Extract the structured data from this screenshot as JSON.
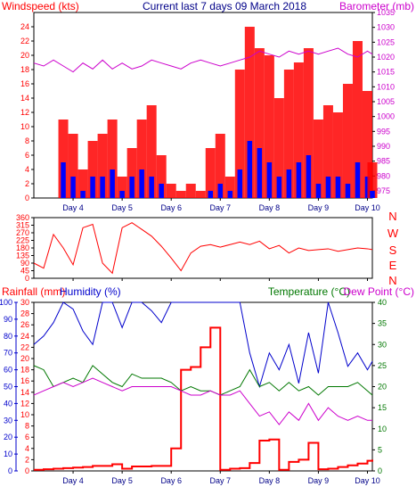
{
  "title": "Current last 7 days 09 March 2018",
  "colors": {
    "wind": "#ff0000",
    "gust": "#ff0000",
    "baro": "#cc00cc",
    "dir": "#ff0000",
    "rain": "#ff0000",
    "hum": "#0000cc",
    "temp": "#007700",
    "dew": "#cc00cc",
    "frame": "#000000",
    "grid": "#cccccc"
  },
  "labels": {
    "wind_axis": "Windspeed (kts)",
    "baro_axis": "Barometer (mb)",
    "rain_axis": "Rainfall (mm)",
    "hum_axis": "Humidity (%)",
    "temp_axis": "Temperature (°C)",
    "dew_axis": "Dew Point (°C)",
    "compass": [
      "N",
      "W",
      "S",
      "E",
      "N"
    ]
  },
  "chart_data": [
    {
      "type": "line",
      "name": "wind-panel",
      "x_ticks": [
        "Day 4",
        "Day 5",
        "Day 6",
        "Day 7",
        "Day 8",
        "Day 9",
        "Day 10"
      ],
      "y_left_ticks": [
        0,
        2,
        4,
        6,
        8,
        10,
        12,
        14,
        16,
        18,
        20,
        22,
        24
      ],
      "y_right_ticks": [
        975,
        980,
        985,
        990,
        995,
        1000,
        1005,
        1010,
        1015,
        1020,
        1025,
        1030,
        1035
      ],
      "ylim_left": [
        0,
        26
      ],
      "ylim_right": [
        975,
        1035
      ],
      "days": [
        3.2,
        3.4,
        3.6,
        3.8,
        4.0,
        4.2,
        4.4,
        4.6,
        4.8,
        5.0,
        5.2,
        5.4,
        5.6,
        5.8,
        6.0,
        6.2,
        6.4,
        6.6,
        6.8,
        7.0,
        7.2,
        7.4,
        7.6,
        7.8,
        8.0,
        8.2,
        8.4,
        8.6,
        8.8,
        9.0,
        9.2,
        9.4,
        9.6,
        9.8,
        10.0,
        10.1
      ],
      "gust": [
        0,
        0,
        0,
        11,
        9,
        4,
        8,
        9,
        11,
        3,
        7,
        11,
        13,
        6,
        2,
        1,
        2,
        1,
        7,
        9,
        3,
        18,
        24,
        21,
        20,
        14,
        18,
        19,
        21,
        11,
        13,
        12,
        16,
        22,
        15,
        5
      ],
      "wind": [
        0,
        0,
        0,
        5,
        3,
        1,
        3,
        3,
        4,
        1,
        3,
        4,
        3,
        2,
        0,
        0,
        0,
        0,
        1,
        2,
        1,
        4,
        8,
        7,
        5,
        3,
        4,
        5,
        6,
        2,
        3,
        3,
        2,
        5,
        3,
        1
      ],
      "baro": [
        1018,
        1017,
        1019,
        1017,
        1015,
        1018,
        1016,
        1019,
        1016,
        1018,
        1016,
        1017,
        1019,
        1018,
        1017,
        1016,
        1018,
        1019,
        1018,
        1017,
        1018,
        1019,
        1020,
        1022,
        1021,
        1020,
        1022,
        1021,
        1022,
        1021,
        1022,
        1023,
        1021,
        1020,
        1022,
        1021
      ]
    },
    {
      "type": "line",
      "name": "direction-panel",
      "x_ticks": [
        "Day 4",
        "Day 5",
        "Day 6",
        "Day 7",
        "Day 8",
        "Day 9",
        "Day 10"
      ],
      "y_ticks": [
        0,
        45,
        90,
        135,
        180,
        225,
        270,
        315,
        360
      ],
      "ylim": [
        0,
        360
      ],
      "days": [
        3.2,
        3.4,
        3.6,
        3.8,
        4.0,
        4.2,
        4.4,
        4.6,
        4.8,
        5.0,
        5.2,
        5.4,
        5.6,
        5.8,
        6.0,
        6.2,
        6.4,
        6.6,
        6.8,
        7.0,
        7.2,
        7.4,
        7.6,
        7.8,
        8.0,
        8.2,
        8.4,
        8.6,
        8.8,
        9.0,
        9.2,
        9.4,
        9.6,
        9.8,
        10.0,
        10.1
      ],
      "direction": [
        90,
        60,
        260,
        180,
        80,
        300,
        320,
        90,
        30,
        300,
        330,
        290,
        250,
        190,
        120,
        45,
        150,
        190,
        200,
        185,
        200,
        215,
        200,
        220,
        175,
        195,
        150,
        180,
        165,
        170,
        175,
        160,
        170,
        180,
        175,
        170
      ]
    },
    {
      "type": "line",
      "name": "rain-panel",
      "x_ticks": [
        "Day 4",
        "Day 5",
        "Day 6",
        "Day 7",
        "Day 8",
        "Day 9",
        "Day 10"
      ],
      "y_rain_ticks": [
        0,
        2,
        4,
        6,
        8,
        10,
        12,
        14,
        16,
        18,
        20,
        22,
        24,
        26,
        28,
        30
      ],
      "y_hum_ticks": [
        0,
        10,
        20,
        30,
        40,
        50,
        60,
        70,
        80,
        90,
        100
      ],
      "y_temp_ticks": [
        0,
        5,
        10,
        15,
        20,
        25,
        30,
        35,
        40
      ],
      "ylim_rain": [
        0,
        30
      ],
      "ylim_hum": [
        0,
        100
      ],
      "ylim_temp": [
        0,
        40
      ],
      "days": [
        3.2,
        3.4,
        3.6,
        3.8,
        4.0,
        4.2,
        4.4,
        4.6,
        4.8,
        5.0,
        5.2,
        5.4,
        5.6,
        5.8,
        6.0,
        6.2,
        6.4,
        6.6,
        6.8,
        7.0,
        7.2,
        7.4,
        7.6,
        7.8,
        8.0,
        8.2,
        8.4,
        8.6,
        8.8,
        9.0,
        9.2,
        9.4,
        9.6,
        9.8,
        10.0,
        10.1
      ],
      "rain": [
        0.2,
        0.3,
        0.4,
        0.5,
        0.6,
        0.7,
        0.9,
        0.9,
        1.2,
        0.4,
        0.8,
        0.8,
        0.9,
        0.9,
        4.0,
        18.0,
        18.5,
        22.0,
        25.5,
        0.2,
        0.4,
        0.5,
        1.4,
        5.4,
        5.6,
        0.2,
        1.6,
        2.0,
        5.0,
        0.3,
        0.4,
        0.7,
        1.0,
        1.3,
        1.8,
        2.0
      ],
      "humidity": [
        75,
        80,
        88,
        100,
        96,
        83,
        75,
        100,
        100,
        85,
        100,
        100,
        95,
        88,
        100,
        100,
        100,
        100,
        100,
        100,
        100,
        100,
        70,
        50,
        70,
        60,
        75,
        52,
        82,
        58,
        100,
        82,
        62,
        70,
        60,
        65
      ],
      "temperature": [
        25,
        24,
        20,
        21,
        22,
        21,
        25,
        23,
        21,
        20,
        23,
        22,
        22,
        22,
        21,
        19,
        20,
        19,
        19,
        18,
        19,
        20,
        24,
        20,
        21,
        19,
        21,
        19,
        20,
        18,
        20,
        20,
        20,
        21,
        19,
        18
      ],
      "dewpoint": [
        18,
        19,
        20,
        21,
        20,
        21,
        22,
        21,
        20,
        19,
        20,
        20,
        20,
        20,
        20,
        19,
        18,
        18,
        19,
        18,
        18,
        19,
        16,
        13,
        14,
        11,
        14,
        12,
        16,
        12,
        15,
        13,
        12,
        13,
        12,
        12
      ]
    }
  ]
}
